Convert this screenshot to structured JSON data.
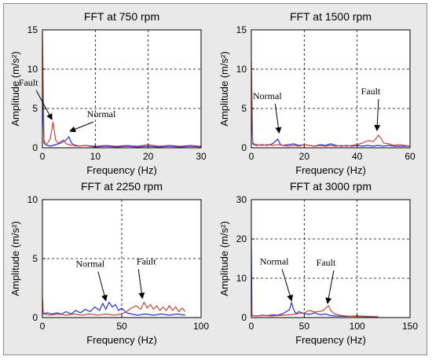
{
  "chart_data": [
    {
      "type": "line",
      "title": "FFT at 750 rpm",
      "xlabel": "Frequency (Hz)",
      "ylabel": "Amplitude (m/s²)",
      "xlim": [
        0,
        30
      ],
      "ylim": [
        0,
        15
      ],
      "xticks": [
        "0",
        "10",
        "20",
        "30"
      ],
      "yticks": [
        "0",
        "5",
        "10",
        "15"
      ],
      "grid": true,
      "series": [
        {
          "color": "#2d2dd6",
          "x": [
            0,
            0.3,
            0.6,
            1,
            1.5,
            2,
            2.5,
            3,
            3.5,
            4,
            4.5,
            5,
            5.5,
            6,
            7,
            8,
            10,
            12,
            14,
            16,
            18,
            20,
            22,
            24,
            26,
            28,
            30
          ],
          "y": [
            7.2,
            0.6,
            0.4,
            0.3,
            0.2,
            0.3,
            0.4,
            0.5,
            0.6,
            0.8,
            1.0,
            1.4,
            0.6,
            0.3,
            0.2,
            0.3,
            0.1,
            0.2,
            0.1,
            0.2,
            0.1,
            0.2,
            0.1,
            0.2,
            0.1,
            0.2,
            0.1
          ]
        },
        {
          "color": "#c84a3a",
          "x": [
            0,
            0.3,
            0.6,
            1,
            1.5,
            2,
            2.5,
            3,
            3.5,
            4,
            4.5,
            5,
            5.5,
            6,
            7,
            8,
            10,
            12,
            14,
            16,
            18,
            20,
            22,
            24,
            26,
            28,
            30
          ],
          "y": [
            15,
            1.0,
            0.4,
            0.6,
            1.2,
            3.3,
            1.0,
            0.6,
            0.8,
            1.0,
            0.5,
            0.4,
            0.3,
            0.4,
            0.2,
            0.3,
            0.2,
            0.3,
            0.2,
            0.3,
            0.2,
            0.4,
            0.2,
            0.3,
            0.2,
            0.3,
            0.2
          ]
        }
      ],
      "annotations": [
        {
          "text": "Fault",
          "target": [
            1.8,
            3.4
          ]
        },
        {
          "text": "Normal",
          "target": [
            5.2,
            1.9
          ]
        }
      ]
    },
    {
      "type": "line",
      "title": "FFT at 1500 rpm",
      "xlabel": "Frequency (Hz)",
      "ylabel": "Amplitude (m/s²)",
      "xlim": [
        0,
        60
      ],
      "ylim": [
        0,
        15
      ],
      "xticks": [
        "0",
        "20",
        "40",
        "60"
      ],
      "yticks": [
        "0",
        "5",
        "10",
        "15"
      ],
      "grid": true,
      "series": [
        {
          "color": "#2d2dd6",
          "x": [
            0,
            0.5,
            1,
            2,
            4,
            6,
            8,
            10,
            11,
            12,
            14,
            16,
            18,
            20,
            22,
            24,
            26,
            28,
            30,
            32,
            34,
            36,
            38,
            40,
            42,
            44,
            46,
            48,
            50,
            52,
            54,
            56,
            58,
            60
          ],
          "y": [
            6,
            0.5,
            0.4,
            0.3,
            0.4,
            0.3,
            0.5,
            1.1,
            0.4,
            0.3,
            0.4,
            0.5,
            0.3,
            0.4,
            0.3,
            0.2,
            0.4,
            0.3,
            0.5,
            0.3,
            0.2,
            0.3,
            0.2,
            0.3,
            0.2,
            0.3,
            0.2,
            0.3,
            0.2,
            0.3,
            0.2,
            0.2,
            0.2,
            0.2
          ]
        },
        {
          "color": "#c84a3a",
          "x": [
            0,
            0.5,
            1,
            2,
            4,
            6,
            8,
            10,
            12,
            14,
            16,
            18,
            20,
            22,
            24,
            26,
            28,
            30,
            32,
            34,
            36,
            38,
            40,
            42,
            44,
            46,
            47,
            48,
            49,
            50,
            52,
            54,
            56,
            58,
            60
          ],
          "y": [
            11,
            0.6,
            0.5,
            0.4,
            0.3,
            0.4,
            0.3,
            0.4,
            0.3,
            0.2,
            0.3,
            0.2,
            0.4,
            0.3,
            0.2,
            0.3,
            0.2,
            0.3,
            0.2,
            0.3,
            0.2,
            0.3,
            0.4,
            0.6,
            0.9,
            0.8,
            1.1,
            1.6,
            1.2,
            0.6,
            0.5,
            0.3,
            0.4,
            0.3,
            0.2
          ]
        }
      ],
      "annotations": [
        {
          "text": "Normal",
          "target": [
            10.5,
            1.7
          ]
        },
        {
          "text": "Fault",
          "target": [
            47.5,
            2.0
          ]
        }
      ]
    },
    {
      "type": "line",
      "title": "FFT at 2250 rpm",
      "xlabel": "Frequency (Hz)",
      "ylabel": "Amplitude (m/s²)",
      "xlim": [
        0,
        100
      ],
      "ylim": [
        0,
        10
      ],
      "xticks": [
        "0",
        "50",
        "100"
      ],
      "yticks": [
        "0",
        "5",
        "10"
      ],
      "grid": true,
      "series": [
        {
          "color": "#2d2dd6",
          "x": [
            0,
            3,
            6,
            9,
            12,
            15,
            18,
            21,
            24,
            27,
            30,
            33,
            36,
            38,
            40,
            42,
            44,
            46,
            48,
            50,
            53,
            56,
            60,
            65,
            70,
            75,
            80,
            85,
            90
          ],
          "y": [
            0.3,
            0.4,
            0.3,
            0.4,
            0.3,
            0.5,
            0.3,
            0.6,
            0.4,
            0.7,
            0.5,
            0.9,
            0.6,
            1.2,
            0.7,
            1.3,
            0.9,
            1.1,
            0.6,
            0.8,
            0.4,
            0.3,
            0.2,
            0.3,
            0.2,
            0.3,
            0.2,
            0.3,
            0.2
          ]
        },
        {
          "color": "#c84a3a",
          "x": [
            0,
            0.5,
            1,
            5,
            10,
            15,
            20,
            25,
            30,
            35,
            40,
            45,
            50,
            53,
            56,
            59,
            62,
            64,
            66,
            68,
            70,
            72,
            74,
            76,
            78,
            80,
            82,
            84,
            86,
            88,
            90
          ],
          "y": [
            1.8,
            0.5,
            0.3,
            0.2,
            0.3,
            0.2,
            0.3,
            0.2,
            0.3,
            0.2,
            0.3,
            0.2,
            0.3,
            0.5,
            0.8,
            1.0,
            0.7,
            1.3,
            0.8,
            1.1,
            0.7,
            1.0,
            0.6,
            0.9,
            0.6,
            1.0,
            0.6,
            0.9,
            0.5,
            0.8,
            0.5
          ]
        }
      ],
      "annotations": [
        {
          "text": "Normal",
          "target": [
            40,
            1.3
          ]
        },
        {
          "text": "Fault",
          "target": [
            63,
            1.5
          ]
        }
      ]
    },
    {
      "type": "line",
      "title": "FFT at 3000 rpm",
      "xlabel": "Frequency (Hz)",
      "ylabel": "Amplitude (m/s²)",
      "xlim": [
        0,
        150
      ],
      "ylim": [
        0,
        30
      ],
      "xticks": [
        "0",
        "50",
        "100",
        "150"
      ],
      "yticks": [
        "0",
        "10",
        "20",
        "30"
      ],
      "grid": true,
      "series": [
        {
          "color": "#2d2dd6",
          "x": [
            0,
            0.5,
            1,
            5,
            10,
            15,
            20,
            25,
            30,
            33,
            36,
            38,
            40,
            42,
            45,
            50,
            55,
            60,
            65,
            70,
            75,
            80,
            90,
            100,
            110,
            120
          ],
          "y": [
            20,
            1.0,
            0.5,
            0.4,
            0.6,
            0.5,
            0.7,
            0.6,
            1.0,
            1.5,
            2.0,
            3.8,
            2.0,
            1.0,
            1.5,
            1.0,
            0.8,
            1.2,
            0.7,
            0.9,
            0.5,
            0.4,
            0.3,
            0.4,
            0.3,
            0.2
          ]
        },
        {
          "color": "#c84a3a",
          "x": [
            0,
            0.5,
            1,
            5,
            10,
            20,
            30,
            40,
            45,
            50,
            55,
            60,
            65,
            68,
            71,
            73,
            75,
            78,
            82,
            86,
            90,
            95,
            100,
            110,
            120
          ],
          "y": [
            4.0,
            0.8,
            0.5,
            0.4,
            0.5,
            0.4,
            0.6,
            0.8,
            1.0,
            1.2,
            1.8,
            1.4,
            1.6,
            1.8,
            2.6,
            3.0,
            1.8,
            1.0,
            0.7,
            0.5,
            0.4,
            0.3,
            0.3,
            0.2,
            0.2
          ]
        }
      ],
      "annotations": [
        {
          "text": "Normal",
          "target": [
            38,
            3.9
          ]
        },
        {
          "text": "Fault",
          "target": [
            72,
            3.2
          ]
        }
      ]
    }
  ]
}
